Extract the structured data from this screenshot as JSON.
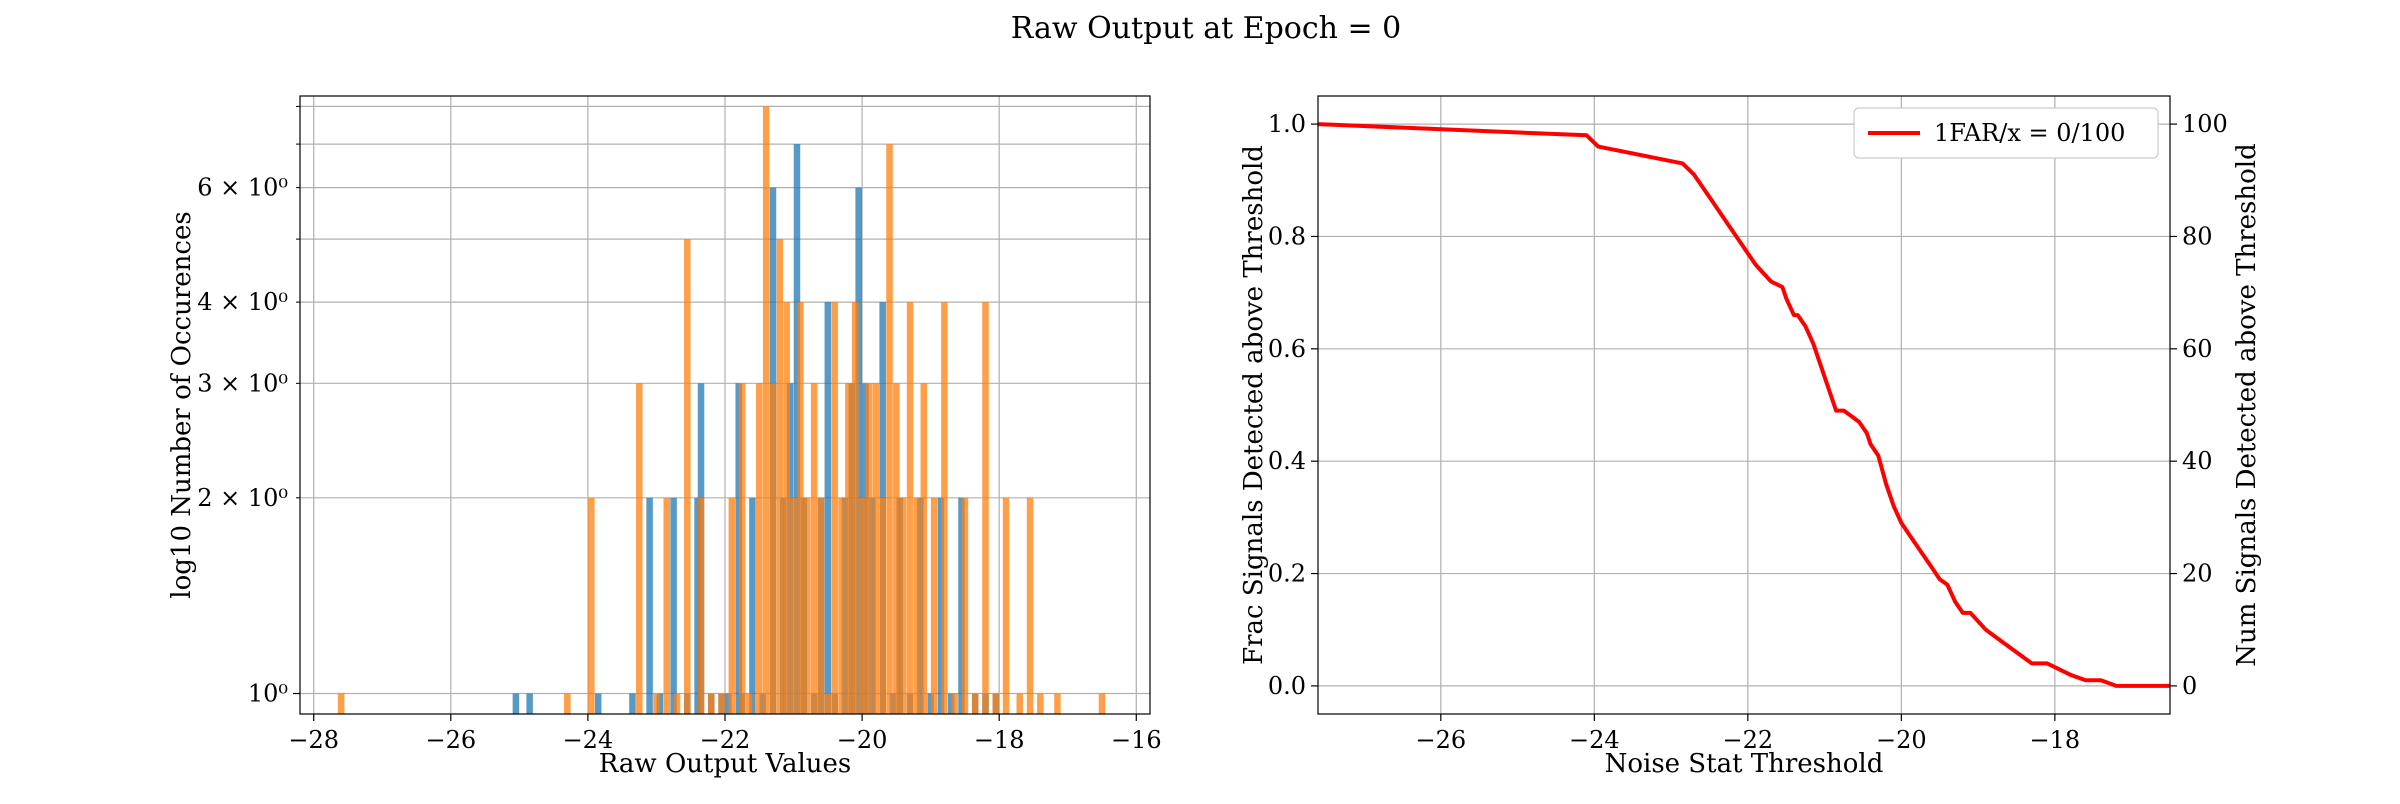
{
  "figure": {
    "title": "Raw Output at Epoch = 0"
  },
  "chart_data": [
    {
      "type": "bar",
      "subtype": "histogram",
      "xlabel": "Raw Output Values",
      "ylabel": "log10 Number of Occurences",
      "xlim": [
        -28.2,
        -15.8
      ],
      "ylim": [
        0.93,
        8.3
      ],
      "yscale": "log",
      "grid": true,
      "x_ticks": [
        -28,
        -26,
        -24,
        -22,
        -20,
        -18,
        -16
      ],
      "x_tick_labels": [
        "−28",
        "−26",
        "−24",
        "−22",
        "−20",
        "−18",
        "−16"
      ],
      "y_major_ticks": [
        1
      ],
      "y_major_tick_labels": [
        "10⁰"
      ],
      "y_minor_ticks": [
        2,
        3,
        4,
        5,
        6,
        7,
        8
      ],
      "y_minor_tick_labels": [
        "2 × 10⁰",
        "3 × 10⁰",
        "4 × 10⁰",
        "",
        "6 × 10⁰",
        "",
        ""
      ],
      "bar_width": 0.095,
      "colors": {
        "series_a": "#1f77b4",
        "series_b": "#ff7f0e"
      },
      "series": [
        {
          "color": "#1f77b4",
          "x": [
            -25.05,
            -24.85,
            -23.85,
            -23.35,
            -23.1,
            -22.95,
            -22.75,
            -22.55,
            -22.4,
            -22.35,
            -22.2,
            -22.05,
            -21.95,
            -21.8,
            -21.75,
            -21.6,
            -21.45,
            -21.3,
            -21.15,
            -21.05,
            -20.95,
            -20.85,
            -20.7,
            -20.6,
            -20.5,
            -20.4,
            -20.25,
            -20.15,
            -20.05,
            -19.95,
            -19.85,
            -19.7,
            -19.55,
            -19.45,
            -19.3,
            -19.15,
            -19.0,
            -18.85,
            -18.7,
            -18.55,
            -18.35,
            -18.2,
            -18.05
          ],
          "values": [
            1,
            1,
            1,
            1,
            2,
            1,
            2,
            1,
            2,
            3,
            1,
            1,
            1,
            3,
            1,
            2,
            1,
            6,
            2,
            3,
            7,
            2,
            1,
            2,
            4,
            1,
            2,
            3,
            6,
            3,
            2,
            4,
            1,
            2,
            1,
            2,
            1,
            2,
            1,
            2,
            1,
            1,
            1
          ]
        },
        {
          "color": "#ff7f0e",
          "x": [
            -27.6,
            -24.3,
            -23.95,
            -23.25,
            -23.0,
            -22.85,
            -22.7,
            -22.55,
            -22.35,
            -22.2,
            -22.05,
            -21.9,
            -21.75,
            -21.65,
            -21.5,
            -21.4,
            -21.3,
            -21.2,
            -21.1,
            -21.0,
            -20.9,
            -20.8,
            -20.7,
            -20.6,
            -20.5,
            -20.4,
            -20.3,
            -20.2,
            -20.1,
            -20.0,
            -19.9,
            -19.8,
            -19.7,
            -19.6,
            -19.5,
            -19.4,
            -19.3,
            -19.2,
            -19.1,
            -18.95,
            -18.8,
            -18.65,
            -18.5,
            -18.35,
            -18.2,
            -18.05,
            -17.9,
            -17.7,
            -17.55,
            -17.4,
            -17.15,
            -16.5
          ],
          "values": [
            1,
            1,
            2,
            3,
            1,
            2,
            1,
            5,
            2,
            1,
            1,
            2,
            3,
            1,
            3,
            8,
            3,
            5,
            4,
            2,
            4,
            2,
            3,
            2,
            1,
            4,
            2,
            3,
            4,
            2,
            3,
            3,
            2,
            7,
            3,
            2,
            4,
            2,
            3,
            2,
            4,
            1,
            2,
            1,
            4,
            1,
            2,
            1,
            2,
            1,
            1,
            1
          ]
        }
      ]
    },
    {
      "type": "line",
      "xlabel": "Noise Stat Threshold",
      "ylabel": "Frac Signals Detected above Threshold",
      "ylabel_right": "Num Signals Detected above Threshold",
      "xlim": [
        -27.6,
        -16.5
      ],
      "ylim": [
        -0.05,
        1.05
      ],
      "ylim_right": [
        -5,
        105
      ],
      "grid": true,
      "legend_position": "top-right",
      "x_ticks": [
        -26,
        -24,
        -22,
        -20,
        -18
      ],
      "x_tick_labels": [
        "−26",
        "−24",
        "−22",
        "−20",
        "−18"
      ],
      "y_ticks": [
        0.0,
        0.2,
        0.4,
        0.6,
        0.8,
        1.0
      ],
      "y_tick_labels": [
        "0.0",
        "0.2",
        "0.4",
        "0.6",
        "0.8",
        "1.0"
      ],
      "y_right_ticks": [
        0,
        20,
        40,
        60,
        80,
        100
      ],
      "y_right_tick_labels": [
        "0",
        "20",
        "40",
        "60",
        "80",
        "100"
      ],
      "series": [
        {
          "name": "1FAR/x = 0/100",
          "color": "#ff0000",
          "x": [
            -27.6,
            -24.1,
            -23.95,
            -22.85,
            -22.7,
            -22.5,
            -22.3,
            -22.0,
            -21.9,
            -21.7,
            -21.55,
            -21.5,
            -21.4,
            -21.35,
            -21.25,
            -21.15,
            -21.05,
            -20.95,
            -20.85,
            -20.75,
            -20.65,
            -20.55,
            -20.45,
            -20.4,
            -20.3,
            -20.2,
            -20.1,
            -20.0,
            -19.9,
            -19.8,
            -19.7,
            -19.6,
            -19.5,
            -19.4,
            -19.3,
            -19.2,
            -19.1,
            -18.9,
            -18.7,
            -18.5,
            -18.3,
            -18.1,
            -17.95,
            -17.8,
            -17.6,
            -17.4,
            -17.2,
            -17.0,
            -16.5
          ],
          "values": [
            1.0,
            0.98,
            0.96,
            0.93,
            0.91,
            0.87,
            0.83,
            0.77,
            0.75,
            0.72,
            0.71,
            0.69,
            0.66,
            0.66,
            0.64,
            0.61,
            0.57,
            0.53,
            0.49,
            0.49,
            0.48,
            0.47,
            0.45,
            0.43,
            0.41,
            0.36,
            0.32,
            0.29,
            0.27,
            0.25,
            0.23,
            0.21,
            0.19,
            0.18,
            0.15,
            0.13,
            0.13,
            0.1,
            0.08,
            0.06,
            0.04,
            0.04,
            0.03,
            0.02,
            0.01,
            0.01,
            0.0,
            0.0,
            0.0
          ]
        }
      ]
    }
  ]
}
